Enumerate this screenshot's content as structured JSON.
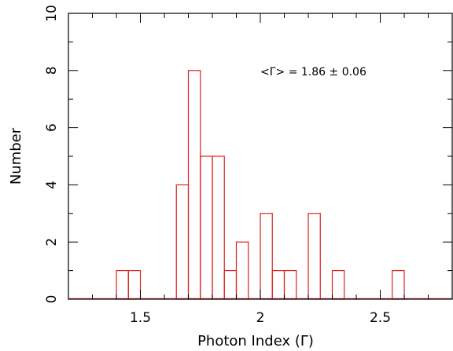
{
  "chart_data": {
    "type": "bar",
    "xlabel": "Photon Index (Γ)",
    "ylabel": "Number",
    "xlim": [
      1.2,
      2.8
    ],
    "ylim": [
      0,
      10
    ],
    "bin_width": 0.05,
    "grid": false,
    "colors": {
      "bars": "#dd2222",
      "axes": "#000000"
    },
    "x_ticks": [
      {
        "value": 1.5,
        "label": "1.5"
      },
      {
        "value": 2.0,
        "label": "2"
      },
      {
        "value": 2.5,
        "label": "2.5"
      }
    ],
    "y_ticks": [
      {
        "value": 0,
        "label": "0"
      },
      {
        "value": 2,
        "label": "2"
      },
      {
        "value": 4,
        "label": "4"
      },
      {
        "value": 6,
        "label": "6"
      },
      {
        "value": 8,
        "label": "8"
      },
      {
        "value": 10,
        "label": "10"
      }
    ],
    "bins": [
      {
        "start": 1.4,
        "count": 1
      },
      {
        "start": 1.45,
        "count": 1
      },
      {
        "start": 1.65,
        "count": 4
      },
      {
        "start": 1.7,
        "count": 8
      },
      {
        "start": 1.75,
        "count": 5
      },
      {
        "start": 1.8,
        "count": 5
      },
      {
        "start": 1.85,
        "count": 1
      },
      {
        "start": 1.9,
        "count": 2
      },
      {
        "start": 2.0,
        "count": 3
      },
      {
        "start": 2.05,
        "count": 1
      },
      {
        "start": 2.1,
        "count": 1
      },
      {
        "start": 2.2,
        "count": 3
      },
      {
        "start": 2.3,
        "count": 1
      },
      {
        "start": 2.55,
        "count": 1
      }
    ],
    "annotation": "<Γ> = 1.86 ± 0.06"
  }
}
